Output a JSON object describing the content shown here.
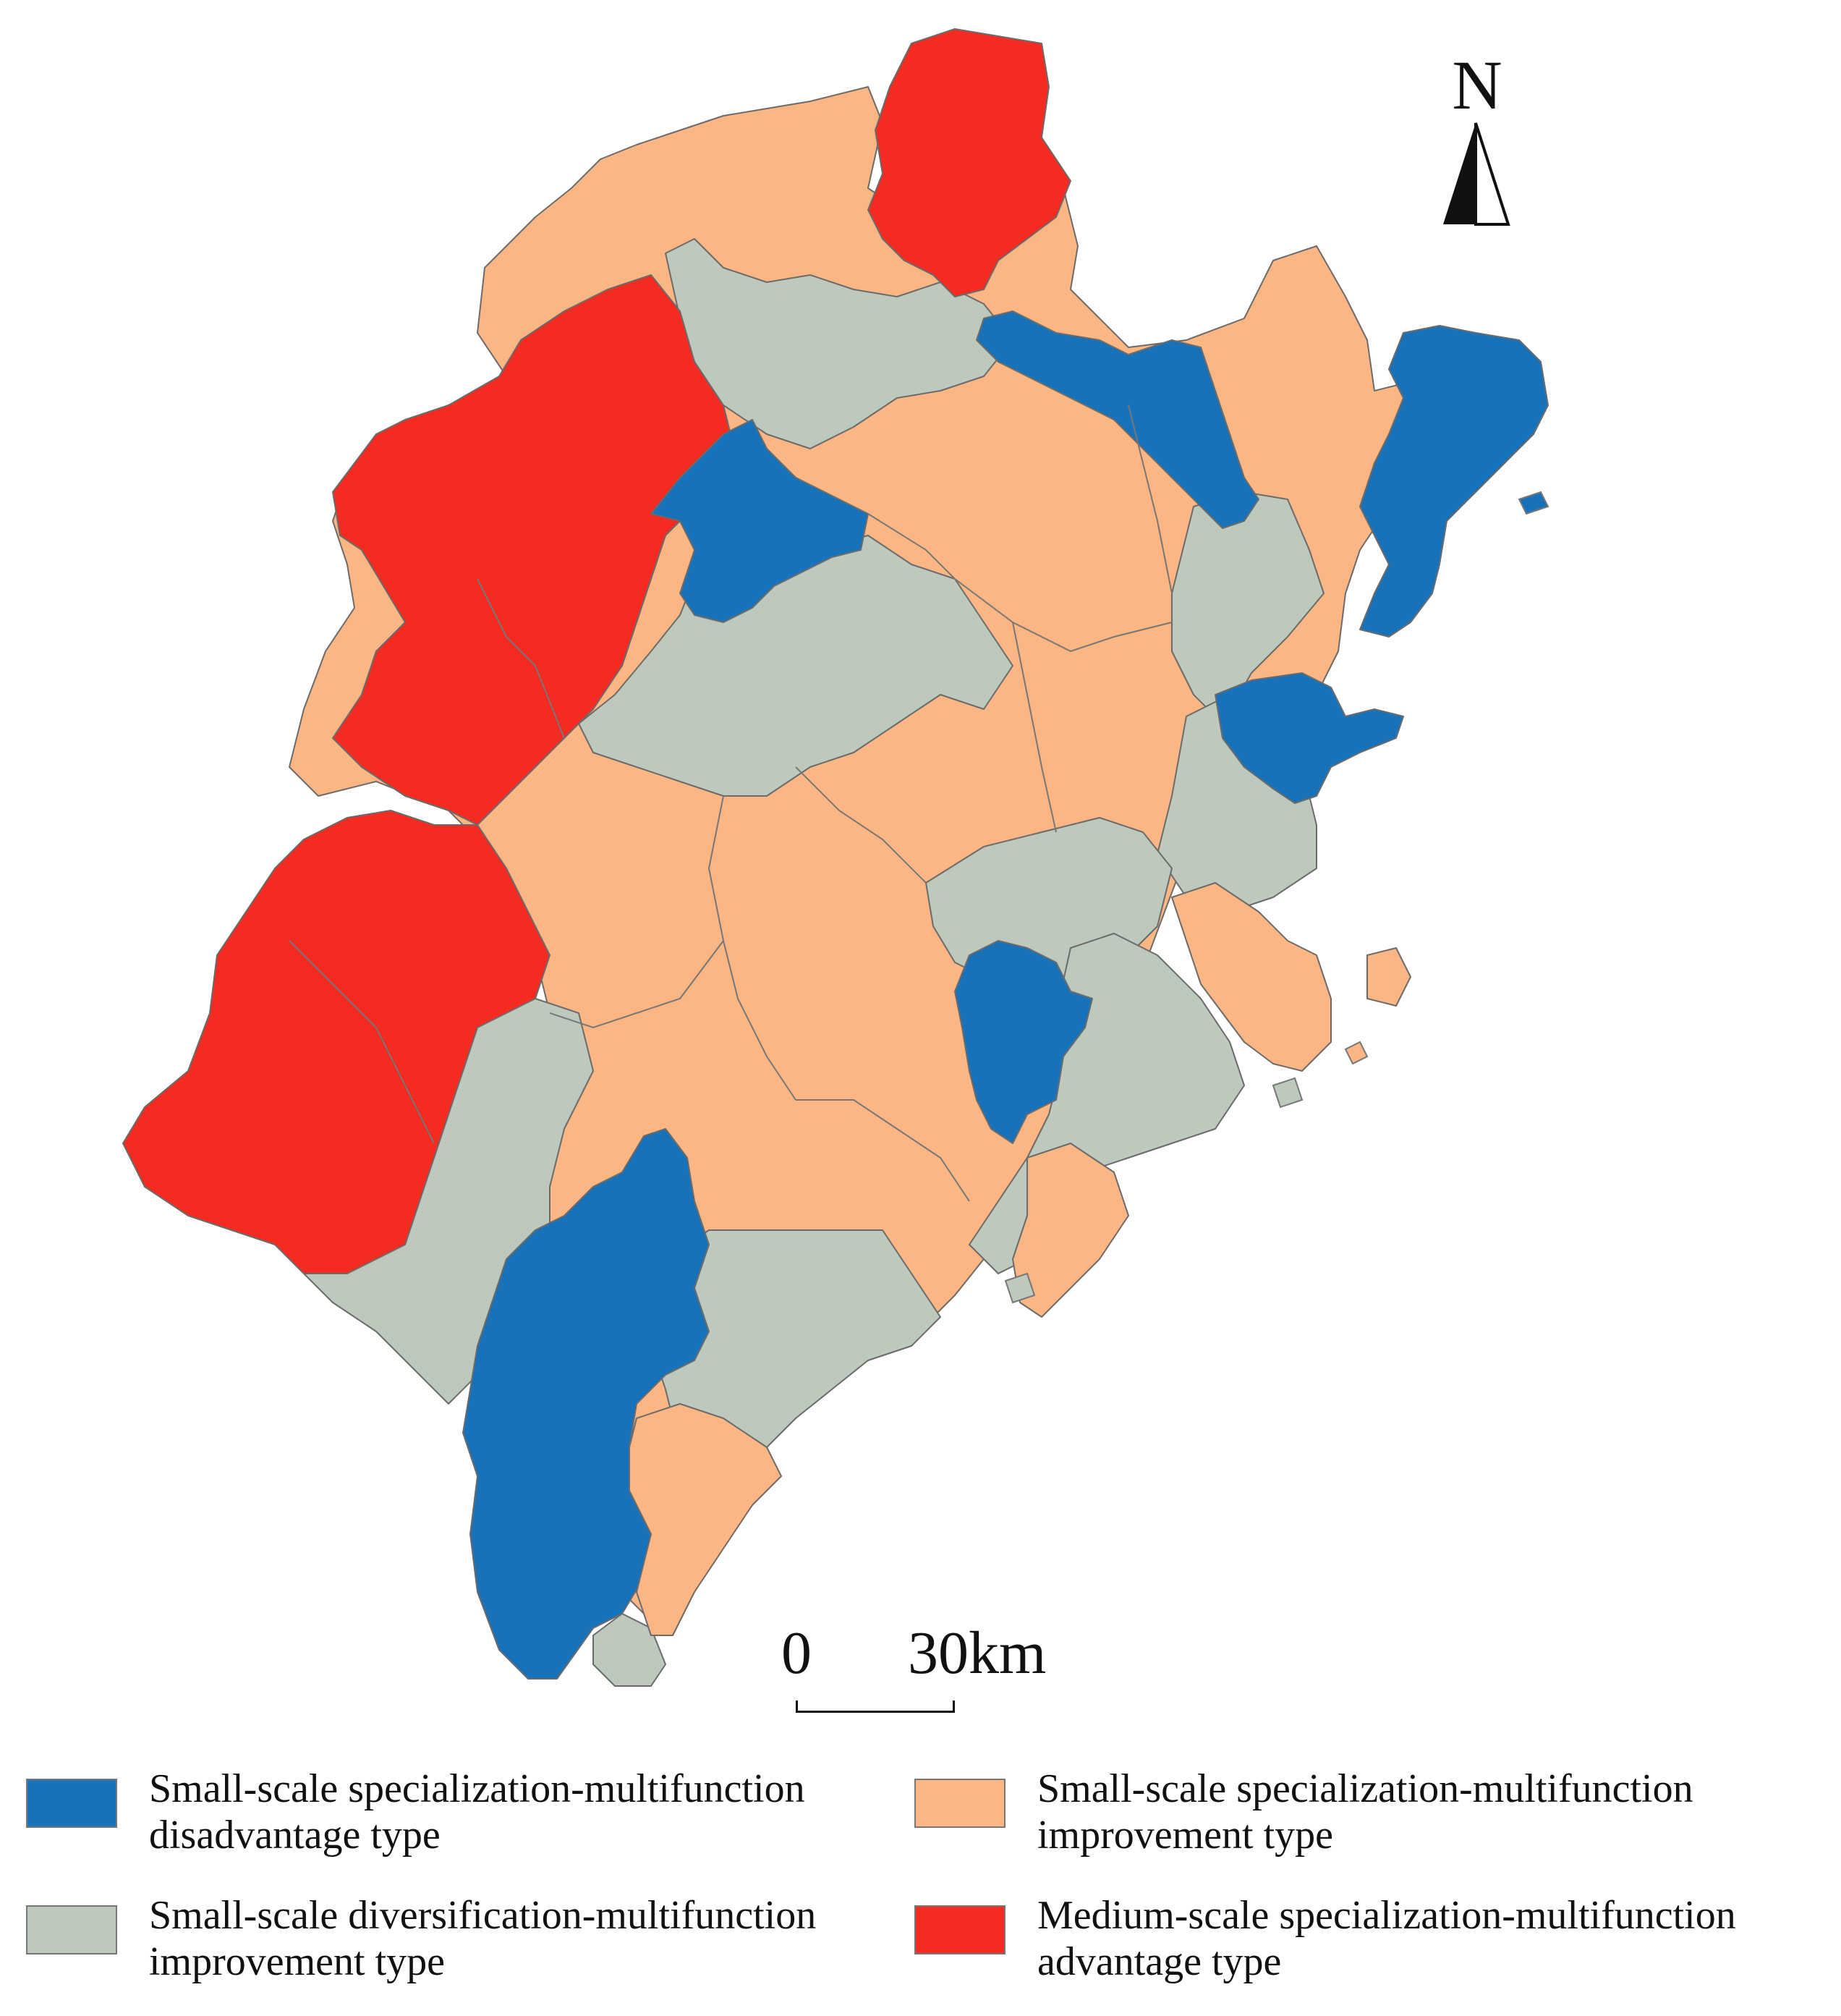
{
  "colors": {
    "disadvantage": "#1872ba",
    "improvement_specialization": "#fbb683",
    "improvement_diversification": "#bcc9bc",
    "advantage": "#f32b20"
  },
  "compass": {
    "letter": "N",
    "icon": "north-arrow-icon"
  },
  "scalebar": {
    "start": "0",
    "end": "30km"
  },
  "legend": [
    {
      "class": "disadvantage",
      "line1": "Small-scale specialization-multifunction",
      "line2": "disadvantage type"
    },
    {
      "class": "improvement_specialization",
      "line1": "Small-scale specialization-multifunction",
      "line2": "improvement type"
    },
    {
      "class": "improvement_diversification",
      "line1": "Small-scale diversification-multifunction",
      "line2": "improvement type"
    },
    {
      "class": "advantage",
      "line1": "Medium-scale specialization-multifunction",
      "line2": "advantage type"
    }
  ]
}
